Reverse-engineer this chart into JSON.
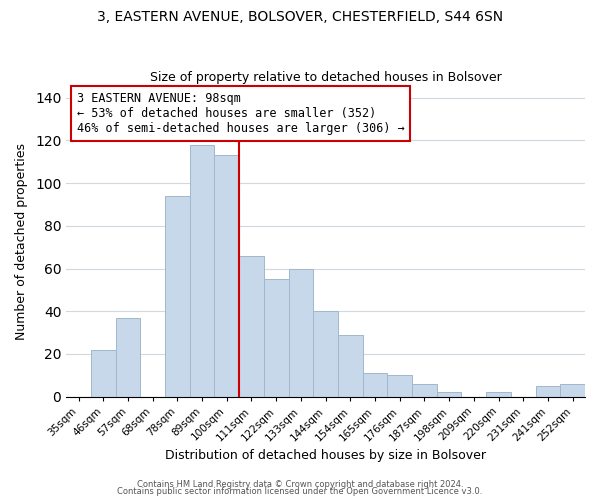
{
  "title_line1": "3, EASTERN AVENUE, BOLSOVER, CHESTERFIELD, S44 6SN",
  "title_line2": "Size of property relative to detached houses in Bolsover",
  "xlabel": "Distribution of detached houses by size in Bolsover",
  "ylabel": "Number of detached properties",
  "bar_labels": [
    "35sqm",
    "46sqm",
    "57sqm",
    "68sqm",
    "78sqm",
    "89sqm",
    "100sqm",
    "111sqm",
    "122sqm",
    "133sqm",
    "144sqm",
    "154sqm",
    "165sqm",
    "176sqm",
    "187sqm",
    "198sqm",
    "209sqm",
    "220sqm",
    "231sqm",
    "241sqm",
    "252sqm"
  ],
  "bar_values": [
    0,
    22,
    37,
    0,
    94,
    118,
    113,
    66,
    55,
    60,
    40,
    29,
    11,
    10,
    6,
    2,
    0,
    2,
    0,
    5,
    6
  ],
  "bar_color": "#c8d8eb",
  "bar_edge_color": "#a0b8cc",
  "vline_x": 6.5,
  "vline_color": "#cc0000",
  "annotation_text": "3 EASTERN AVENUE: 98sqm\n← 53% of detached houses are smaller (352)\n46% of semi-detached houses are larger (306) →",
  "annotation_box_color": "#ffffff",
  "annotation_box_edge": "#cc0000",
  "ylim": [
    0,
    145
  ],
  "yticks": [
    0,
    20,
    40,
    60,
    80,
    100,
    120,
    140
  ],
  "footer_line1": "Contains HM Land Registry data © Crown copyright and database right 2024.",
  "footer_line2": "Contains public sector information licensed under the Open Government Licence v3.0.",
  "background_color": "#ffffff",
  "grid_color": "#d0d8e0"
}
